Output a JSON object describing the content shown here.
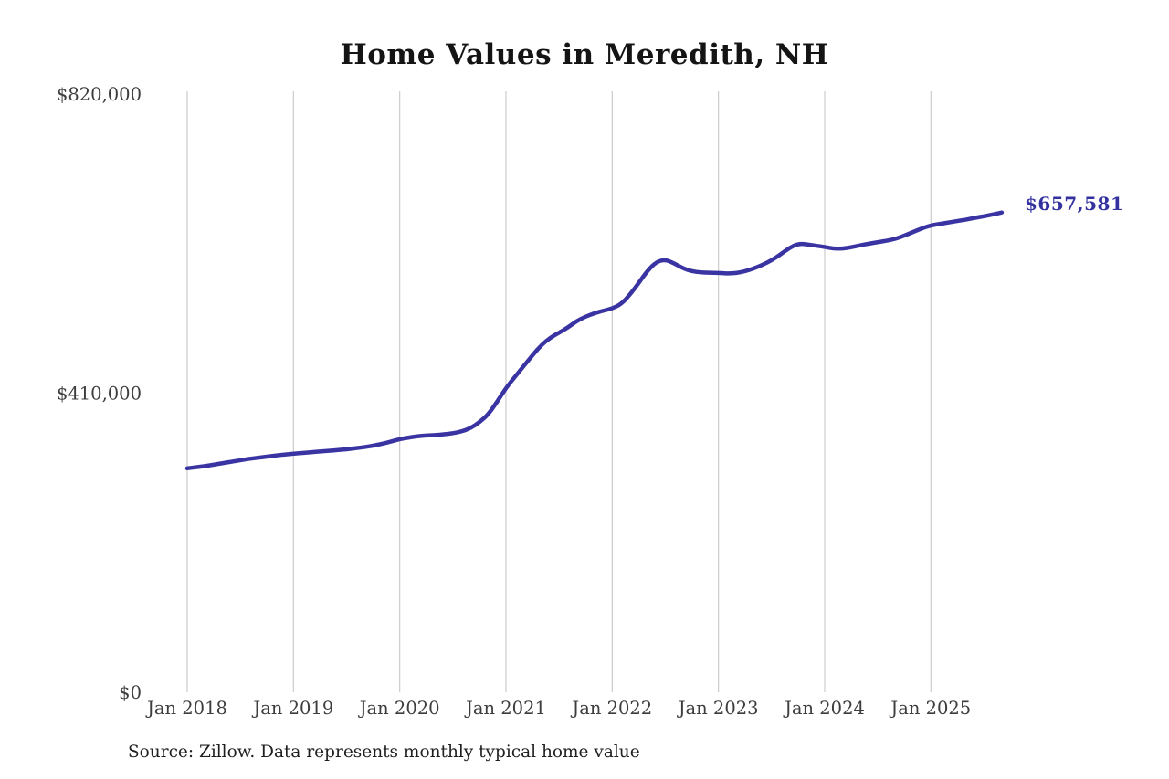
{
  "source": "Source: Zillow. Data represents monthly typical home value",
  "chart_data": {
    "type": "line",
    "title": "Home Values in Meredith, NH",
    "xlabel": "",
    "ylabel": "",
    "x_frequency": "monthly",
    "x_start": "2018-01",
    "x_end": "2025-09",
    "x_tick_labels": [
      "Jan 2018",
      "Jan 2019",
      "Jan 2020",
      "Jan 2021",
      "Jan 2022",
      "Jan 2023",
      "Jan 2024",
      "Jan 2025"
    ],
    "y_ticks": [
      0,
      410000,
      820000
    ],
    "y_tick_labels": [
      "$0",
      "$410,000",
      "$820,000"
    ],
    "ylim": [
      0,
      820000
    ],
    "grid": "vertical-only",
    "legend": "none",
    "end_label": "$657,581",
    "end_value": 657581,
    "colors": {
      "line": "#3a34a3",
      "end_label": "#33319f",
      "gridline": "#cccccc",
      "tick_text": "#3d3d3d"
    },
    "series": [
      {
        "name": "Typical home value",
        "values": [
          307000,
          308500,
          310000,
          312000,
          314000,
          316000,
          318000,
          320000,
          321500,
          323000,
          324500,
          326000,
          327000,
          328000,
          329000,
          330000,
          331000,
          332000,
          333000,
          334500,
          336000,
          338000,
          340500,
          343500,
          347000,
          349000,
          351000,
          352000,
          352500,
          353500,
          355000,
          357500,
          362000,
          370000,
          381000,
          398000,
          417000,
          432000,
          447000,
          462000,
          476000,
          486000,
          493000,
          500000,
          509000,
          515000,
          519500,
          523000,
          526000,
          532000,
          545000,
          561000,
          578000,
          590000,
          593000,
          588000,
          581000,
          577000,
          575500,
          575000,
          575000,
          574000,
          574500,
          577000,
          581000,
          586000,
          592000,
          600000,
          609000,
          615000,
          614000,
          612000,
          610500,
          608000,
          608000,
          610000,
          612500,
          615000,
          617000,
          619000,
          621500,
          626000,
          631000,
          636000,
          640000,
          642000,
          644000,
          646000,
          648000,
          650500,
          652500,
          655000,
          657581
        ]
      }
    ]
  }
}
